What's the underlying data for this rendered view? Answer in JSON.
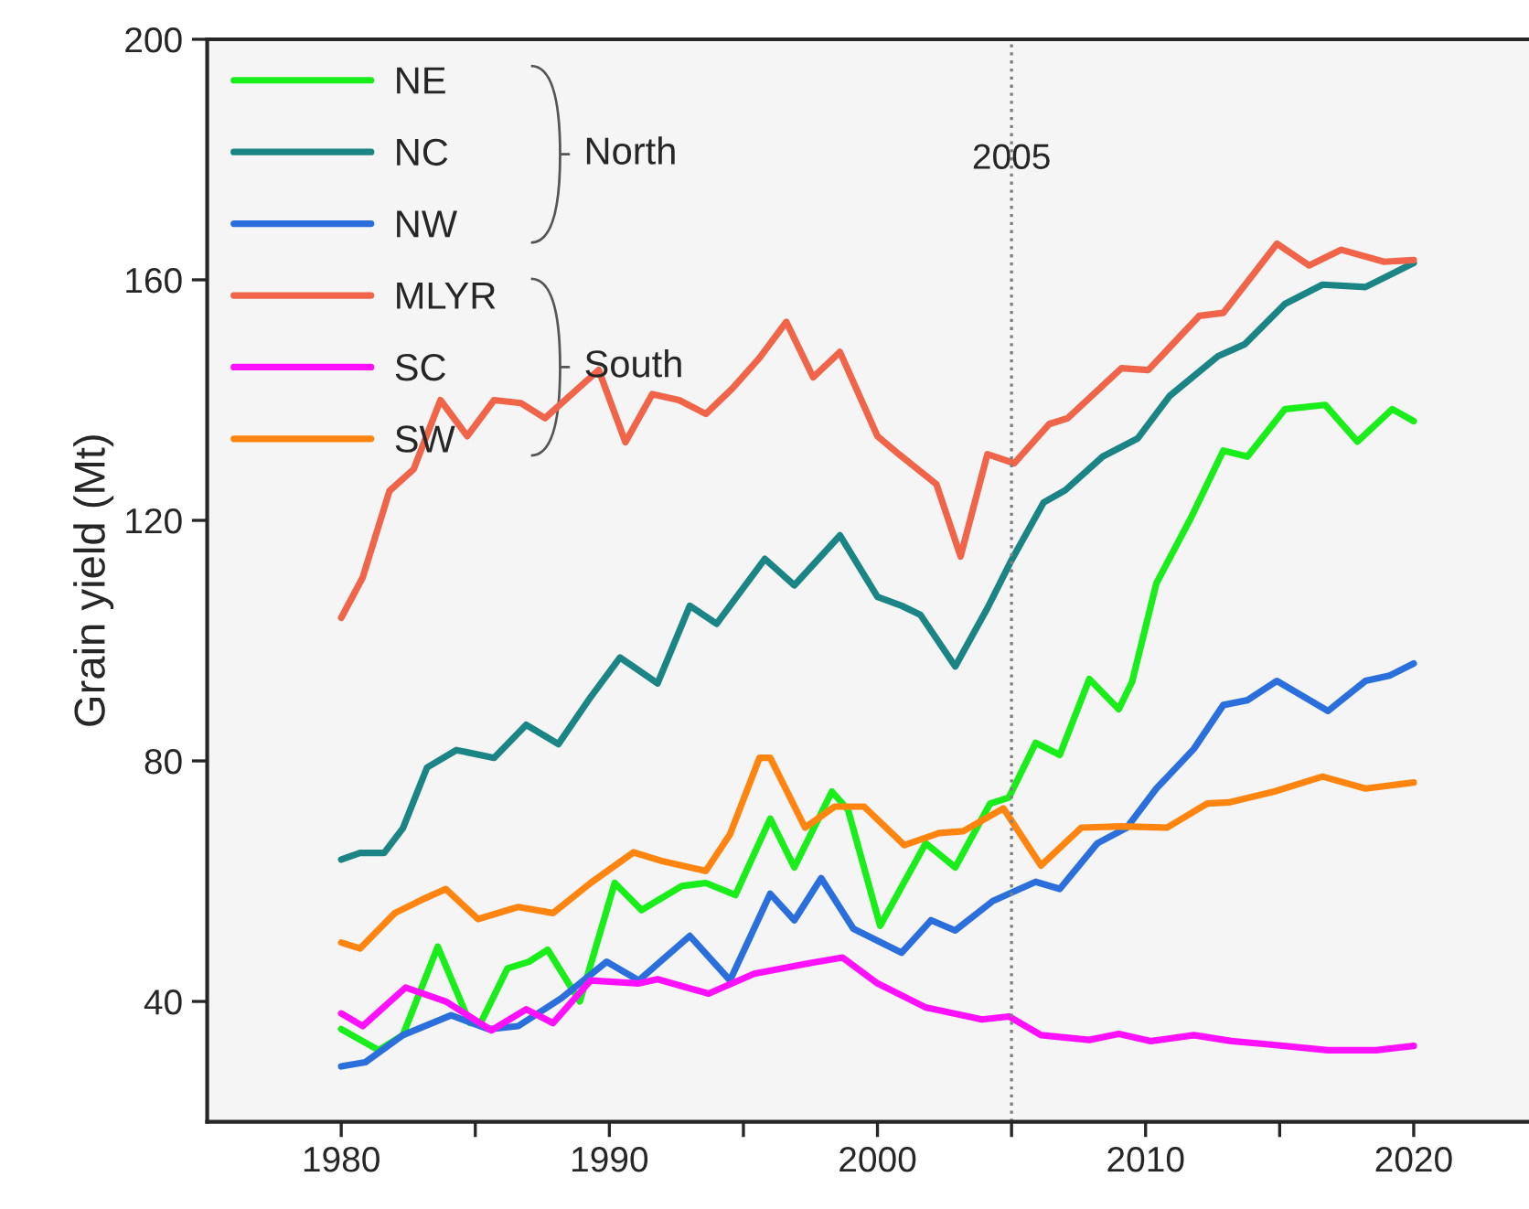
{
  "chart_data": {
    "type": "line",
    "ylabel": "Grain yield (Mt)",
    "xlim": [
      1975,
      2024.3
    ],
    "ylim": [
      20,
      200
    ],
    "xticks": [
      1980,
      {
        "value": 1985,
        "label": null
      },
      1990,
      {
        "value": 1995,
        "label": null
      },
      2000,
      {
        "value": 2005,
        "label": null
      },
      2010,
      {
        "value": 2015,
        "label": null
      },
      2020
    ],
    "yticks": [
      40,
      80,
      120,
      160,
      200
    ],
    "grid": false,
    "legend": "top left",
    "line_style": "solid",
    "marker": "none",
    "ref_lines": [
      {
        "axis": "x",
        "value": 2005,
        "label": "2005",
        "color": "#808080",
        "line_style": "dotted"
      }
    ],
    "annotations": [
      "North",
      "South"
    ],
    "series": [
      {
        "name": "NE",
        "color": "#1aee1a",
        "x": [
          1980,
          1981.4,
          1982.3,
          1983.6,
          1984.8,
          1985.2,
          1986.2,
          1987,
          1987.7,
          1988.9,
          1990.2,
          1991.2,
          1992.7,
          1993.6,
          1994.7,
          1996,
          1996.9,
          1998.3,
          1998.9,
          2000.1,
          2001.8,
          2002.9,
          2004.2,
          2004.9,
          2005.9,
          2006.8,
          2007.9,
          2009,
          2009.5,
          2010.4,
          2011.7,
          2012.9,
          2013.8,
          2015.2,
          2016.7,
          2017.9,
          2019.2,
          2020
        ],
        "values": [
          35.4,
          31.9,
          34.4,
          49.1,
          36.4,
          36.4,
          45.5,
          46.6,
          48.6,
          40,
          59.7,
          55.2,
          59.2,
          59.7,
          57.7,
          70.4,
          62.3,
          74.9,
          71.9,
          52.6,
          66.3,
          62.3,
          72.9,
          73.9,
          83,
          81,
          93.6,
          88.6,
          93.2,
          109.5,
          120.5,
          131.6,
          130.6,
          138.5,
          139.2,
          133.1,
          138.5,
          136.5
        ]
      },
      {
        "name": "NC",
        "color": "#1b8484",
        "x": [
          1980,
          1980.7,
          1981.6,
          1982.3,
          1983.2,
          1984.3,
          1985.7,
          1986.9,
          1988.1,
          1989.3,
          1990.4,
          1991.8,
          1993,
          1994,
          1995.8,
          1996.9,
          1998.6,
          2000,
          2000.9,
          2001.6,
          2002.9,
          2004.1,
          2005,
          2006.2,
          2007,
          2008.4,
          2009.7,
          2010.9,
          2012.7,
          2013.7,
          2015.2,
          2016.6,
          2018.2,
          2020
        ],
        "values": [
          63.6,
          64.7,
          64.7,
          68.8,
          78.9,
          81.8,
          80.5,
          86,
          82.8,
          90.6,
          97.2,
          92.9,
          105.8,
          102.8,
          113.6,
          109.2,
          117.5,
          107.3,
          105.8,
          104.3,
          95.7,
          105.4,
          113.4,
          123,
          125,
          130.6,
          133.6,
          140.7,
          147.3,
          149.3,
          156,
          159.2,
          158.8,
          162.8
        ]
      },
      {
        "name": "NW",
        "color": "#2a6fdb",
        "x": [
          1980,
          1980.9,
          1982.3,
          1984.1,
          1985.5,
          1986.6,
          1988.2,
          1989.9,
          1991.1,
          1993,
          1994.5,
          1996,
          1996.9,
          1997.9,
          1999.1,
          2000.9,
          2002,
          2002.9,
          2004.3,
          2005.9,
          2006.8,
          2008.2,
          2009.3,
          2010.4,
          2011.8,
          2012.9,
          2013.8,
          2014.9,
          2016.8,
          2018.2,
          2019.1,
          2020
        ],
        "values": [
          29.2,
          29.9,
          34.4,
          37.7,
          35.4,
          35.9,
          40.5,
          46.6,
          43.5,
          50.9,
          43.5,
          57.9,
          53.5,
          60.5,
          52.1,
          48.1,
          53.5,
          51.8,
          56.7,
          59.9,
          58.7,
          66.3,
          68.9,
          75.4,
          82,
          89.3,
          90.1,
          93.3,
          88.3,
          93.3,
          94.2,
          96.2
        ]
      },
      {
        "name": "MLYR",
        "color": "#f06449",
        "x": [
          1980,
          1980.8,
          1981.8,
          1982.7,
          1983.7,
          1984.7,
          1985.7,
          1986.7,
          1987.6,
          1988.6,
          1989.6,
          1990.6,
          1991.6,
          1992.6,
          1993.6,
          1994.6,
          1995.6,
          1996.6,
          1997.6,
          1998.6,
          2000,
          2000.8,
          2002.2,
          2003.1,
          2004.1,
          2005.1,
          2006.4,
          2007.1,
          2009.1,
          2010.1,
          2012,
          2012.9,
          2014.9,
          2016.1,
          2017.3,
          2018.9,
          2020
        ],
        "values": [
          103.8,
          110.5,
          124.9,
          128.5,
          140,
          134,
          140,
          139.5,
          137,
          141,
          145,
          133,
          141,
          140,
          137.7,
          142,
          147,
          153,
          143.8,
          148,
          134,
          131,
          126,
          114,
          131,
          129.5,
          136,
          137,
          145.3,
          145,
          154,
          154.5,
          166,
          162.4,
          165,
          163,
          163.3
        ]
      },
      {
        "name": "SC",
        "color": "#ff10ff",
        "x": [
          1980,
          1980.8,
          1982.4,
          1983.9,
          1985.6,
          1986.9,
          1987.9,
          1989.3,
          1991.1,
          1991.8,
          1993.7,
          1995.4,
          1997.5,
          1998.7,
          2000,
          2001.8,
          2003.9,
          2004.9,
          2006.1,
          2007.9,
          2009,
          2010.2,
          2011.8,
          2013.2,
          2014.5,
          2016.8,
          2018.6,
          2020
        ],
        "values": [
          38,
          35.9,
          42.3,
          40,
          35.2,
          38.7,
          36.4,
          43.5,
          43,
          43.7,
          41.3,
          44.6,
          46.4,
          47.3,
          43,
          39,
          37,
          37.5,
          34.4,
          33.6,
          34.6,
          33.4,
          34.4,
          33.4,
          32.9,
          31.9,
          31.9,
          32.6
        ]
      },
      {
        "name": "SW",
        "color": "#ff8510",
        "x": [
          1980,
          1980.7,
          1982,
          1983,
          1983.9,
          1985.1,
          1986.6,
          1987.9,
          1989.3,
          1990.9,
          1992,
          1993.6,
          1994.5,
          1995.6,
          1996,
          1997.3,
          1998.4,
          1999.5,
          2001,
          2002.3,
          2003.2,
          2004.7,
          2006.1,
          2007.6,
          2009.1,
          2010.8,
          2012.3,
          2013.1,
          2014.8,
          2016.6,
          2018.2,
          2020
        ],
        "values": [
          49.8,
          48.8,
          54.7,
          56.9,
          58.7,
          53.7,
          55.7,
          54.7,
          59.7,
          64.8,
          63.3,
          61.7,
          67.8,
          80.5,
          80.5,
          68.9,
          72.4,
          72.4,
          66,
          68,
          68.3,
          72.1,
          62.6,
          68.9,
          69.1,
          68.9,
          72.9,
          73.1,
          74.9,
          77.4,
          75.4,
          76.4
        ]
      }
    ]
  }
}
